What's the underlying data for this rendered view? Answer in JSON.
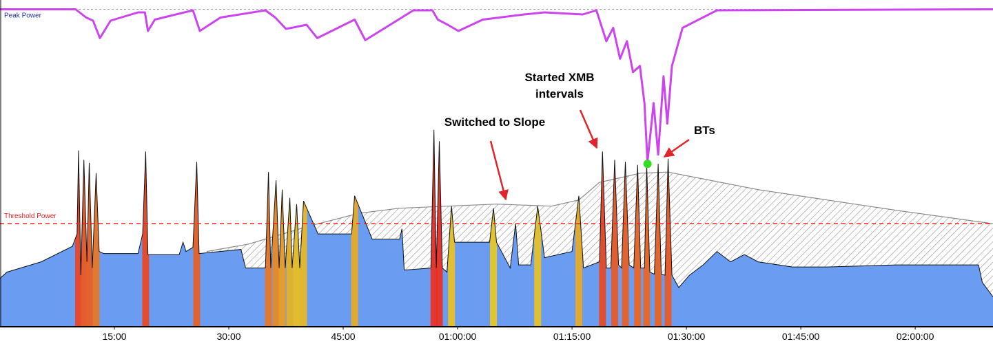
{
  "chart_data": {
    "type": "line",
    "xlim": [
      0,
      130.2
    ],
    "ylim": [
      0,
      317
    ],
    "xticks": [
      {
        "value": 15,
        "label": "15:00"
      },
      {
        "value": 30,
        "label": "30:00"
      },
      {
        "value": 45,
        "label": "45:00"
      },
      {
        "value": 60,
        "label": "01:00:00"
      },
      {
        "value": 75,
        "label": "01:15:00"
      },
      {
        "value": 90,
        "label": "01:30:00"
      },
      {
        "value": 105,
        "label": "01:45:00"
      },
      {
        "value": 120,
        "label": "02:00:00"
      }
    ],
    "reference_lines": [
      {
        "label": "Peak Power",
        "value": 308,
        "color": "#9999cc",
        "text_color": "#2233aa"
      },
      {
        "label": "Threshold Power",
        "value": 100,
        "color": "#ee2222",
        "text_color": "#ee2222"
      }
    ],
    "annotations": [
      [
        "Started XMB",
        "intervals"
      ],
      [
        "Switched to Slope"
      ],
      [
        "BTs"
      ]
    ],
    "series": [
      {
        "color": "#6a9cf2",
        "x": [
          0,
          0.9,
          5.4,
          9.5,
          10.1,
          10.3,
          10.6,
          11.0,
          11.4,
          11.7,
          12.1,
          12.6,
          13.0,
          13.6,
          18.1,
          18.7,
          19.1,
          19.4,
          23.5,
          24.0,
          24.4,
          25.3,
          25.8,
          26.1,
          31.6,
          32.2,
          34.8,
          35.2,
          35.5,
          36.2,
          36.6,
          37.0,
          37.4,
          38.0,
          38.3,
          38.9,
          39.3,
          39.8,
          41.7,
          46.1,
          46.5,
          48.8,
          52.4,
          52.7,
          53.0,
          56.5,
          56.9,
          57.2,
          57.6,
          58.0,
          58.6,
          59.2,
          59.6,
          64.2,
          64.7,
          65.1,
          66.9,
          67.6,
          68.0,
          69.6,
          70.5,
          71.4,
          75.0,
          75.9,
          76.5,
          78.6,
          79.0,
          79.5,
          80.1,
          80.6,
          81.1,
          81.5,
          82.0,
          82.5,
          83.1,
          83.6,
          84.0,
          84.5,
          84.8,
          85.2,
          85.8,
          86.3,
          86.7,
          87.2,
          87.6,
          88.1,
          89.0,
          90.4,
          92.2,
          94.0,
          95.8,
          97.6,
          99.4,
          103.9,
          108.4,
          117.5,
          128.3,
          128.8,
          130.2
        ],
        "values": [
          47,
          53,
          63,
          78,
          90,
          171,
          50,
          162,
          63,
          159,
          57,
          149,
          73,
          71,
          71,
          90,
          170,
          70,
          70,
          82,
          73,
          77,
          160,
          71,
          75,
          57,
          57,
          150,
          57,
          142,
          57,
          133,
          57,
          125,
          57,
          119,
          57,
          122,
          90,
          90,
          127,
          85,
          85,
          95,
          55,
          57,
          191,
          57,
          180,
          57,
          53,
          117,
          82,
          82,
          115,
          82,
          57,
          100,
          60,
          60,
          117,
          67,
          73,
          127,
          57,
          63,
          170,
          57,
          57,
          162,
          60,
          57,
          160,
          60,
          57,
          157,
          57,
          57,
          157,
          53,
          51,
          158,
          51,
          50,
          163,
          50,
          38,
          50,
          60,
          73,
          63,
          70,
          63,
          58,
          58,
          60,
          60,
          43,
          29
        ]
      },
      {
        "color": "#888888",
        "x": [
          27.1,
          32.5,
          40.7,
          47.0,
          52.4,
          58.7,
          65.1,
          72.3,
          75.9,
          78.6,
          84.0,
          87.6,
          99.4,
          117.5,
          130.2
        ],
        "values": [
          73,
          80,
          98,
          110,
          115,
          117,
          119,
          117,
          123,
          140,
          149,
          150,
          133,
          113,
          100
        ]
      },
      {
        "color": "#cc44ee",
        "x": [
          0,
          9.9,
          11.3,
          12.2,
          13.1,
          14.5,
          18.1,
          19.0,
          19.4,
          20.3,
          25.3,
          26.2,
          28.9,
          34.8,
          36.1,
          37.5,
          38.9,
          40.2,
          41.6,
          46.5,
          47.9,
          54.2,
          56.7,
          57.4,
          58.7,
          60.1,
          63.3,
          68.7,
          71.4,
          76.4,
          78.2,
          79.5,
          80.4,
          81.3,
          82.2,
          83.0,
          83.9,
          84.5,
          84.9,
          85.7,
          86.3,
          87.0,
          87.5,
          88.1,
          89.5,
          94.0,
          130.2
        ],
        "values": [
          308,
          308,
          300,
          297,
          280,
          297,
          305,
          305,
          287,
          298,
          307,
          287,
          300,
          307,
          300,
          289,
          291,
          293,
          280,
          298,
          278,
          307,
          307,
          298,
          293,
          287,
          298,
          303,
          305,
          303,
          307,
          277,
          290,
          260,
          277,
          247,
          253,
          217,
          160,
          217,
          167,
          243,
          197,
          253,
          290,
          307,
          308
        ]
      }
    ],
    "marker": {
      "x": 84.9,
      "y": 158,
      "color": "#33dd22"
    }
  }
}
